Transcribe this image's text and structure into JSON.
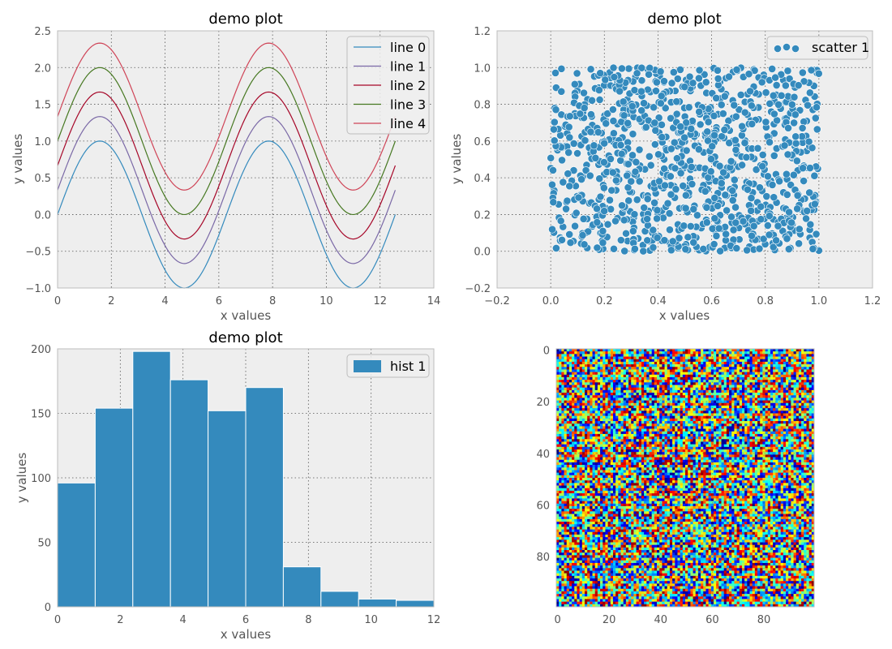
{
  "colors": {
    "background": "#ffffff",
    "axes_face": "#eeeeee",
    "axes_edge": "#bcbcbc",
    "grid": "#555555",
    "tick_text": "#555555",
    "title_text": "#000000",
    "hist_edge": "#ffffff"
  },
  "chart_data": [
    {
      "id": "lines",
      "type": "line",
      "title": "demo plot",
      "xlabel": "x values",
      "ylabel": "y values",
      "xlim": [
        0,
        14
      ],
      "ylim": [
        -1.0,
        2.5
      ],
      "xticks": [
        0,
        2,
        4,
        6,
        8,
        10,
        12,
        14
      ],
      "xtick_labels": [
        "0",
        "2",
        "4",
        "6",
        "8",
        "10",
        "12",
        "14"
      ],
      "yticks": [
        -1.0,
        -0.5,
        0.0,
        0.5,
        1.0,
        1.5,
        2.0,
        2.5
      ],
      "ytick_labels": [
        "−1.0",
        "−0.5",
        "0.0",
        "0.5",
        "1.0",
        "1.5",
        "2.0",
        "2.5"
      ],
      "grid": true,
      "legend": "top-right",
      "x_range": [
        0,
        12.566
      ],
      "function": "sin(x) + offset",
      "series": [
        {
          "name": "line 0",
          "offset": 0.0,
          "color": "#348abd"
        },
        {
          "name": "line 1",
          "offset": 0.333,
          "color": "#7a68a6"
        },
        {
          "name": "line 2",
          "offset": 0.667,
          "color": "#a60628"
        },
        {
          "name": "line 3",
          "offset": 1.0,
          "color": "#467821"
        },
        {
          "name": "line 4",
          "offset": 1.333,
          "color": "#cf4457"
        }
      ]
    },
    {
      "id": "scatter",
      "type": "scatter",
      "title": "demo plot",
      "xlabel": "x values",
      "ylabel": "y values",
      "xlim": [
        -0.2,
        1.2
      ],
      "ylim": [
        -0.2,
        1.2
      ],
      "xticks": [
        -0.2,
        0.0,
        0.2,
        0.4,
        0.6,
        0.8,
        1.0,
        1.2
      ],
      "xtick_labels": [
        "−0.2",
        "0.0",
        "0.2",
        "0.4",
        "0.6",
        "0.8",
        "1.0",
        "1.2"
      ],
      "yticks": [
        -0.2,
        0.0,
        0.2,
        0.4,
        0.6,
        0.8,
        1.0,
        1.2
      ],
      "ytick_labels": [
        "−0.2",
        "0.0",
        "0.2",
        "0.4",
        "0.6",
        "0.8",
        "1.0",
        "1.2"
      ],
      "grid": true,
      "legend": "top-right",
      "series": [
        {
          "name": "scatter 1",
          "color": "#348abd",
          "count": 1000,
          "distribution": "uniform random on [0,1]x[0,1]"
        }
      ]
    },
    {
      "id": "hist",
      "type": "bar",
      "title": "demo plot",
      "xlabel": "x values",
      "ylabel": "y values",
      "xlim": [
        0,
        12
      ],
      "ylim": [
        0,
        200
      ],
      "xticks": [
        0,
        2,
        4,
        6,
        8,
        10,
        12
      ],
      "xtick_labels": [
        "0",
        "2",
        "4",
        "6",
        "8",
        "10",
        "12"
      ],
      "yticks": [
        0,
        50,
        100,
        150,
        200
      ],
      "ytick_labels": [
        "0",
        "50",
        "100",
        "150",
        "200"
      ],
      "grid": true,
      "legend": "top-right",
      "bin_edges": [
        0.0,
        1.2,
        2.4,
        3.6,
        4.8,
        6.0,
        7.2,
        8.4,
        9.6,
        10.8,
        12.0
      ],
      "series": [
        {
          "name": "hist 1",
          "color": "#348abd",
          "values": [
            96,
            154,
            198,
            176,
            152,
            170,
            31,
            12,
            6,
            5
          ]
        }
      ]
    },
    {
      "id": "image",
      "type": "heatmap",
      "title": "",
      "colormap": "jet",
      "rows": 100,
      "cols": 100,
      "distribution": "uniform random values",
      "xlim": [
        -0.5,
        99.5
      ],
      "ylim": [
        99.5,
        -0.5
      ],
      "xticks": [
        0,
        20,
        40,
        60,
        80
      ],
      "xtick_labels": [
        "0",
        "20",
        "40",
        "60",
        "80"
      ],
      "yticks": [
        0,
        20,
        40,
        60,
        80
      ],
      "ytick_labels": [
        "0",
        "20",
        "40",
        "60",
        "80"
      ],
      "grid": true
    }
  ]
}
